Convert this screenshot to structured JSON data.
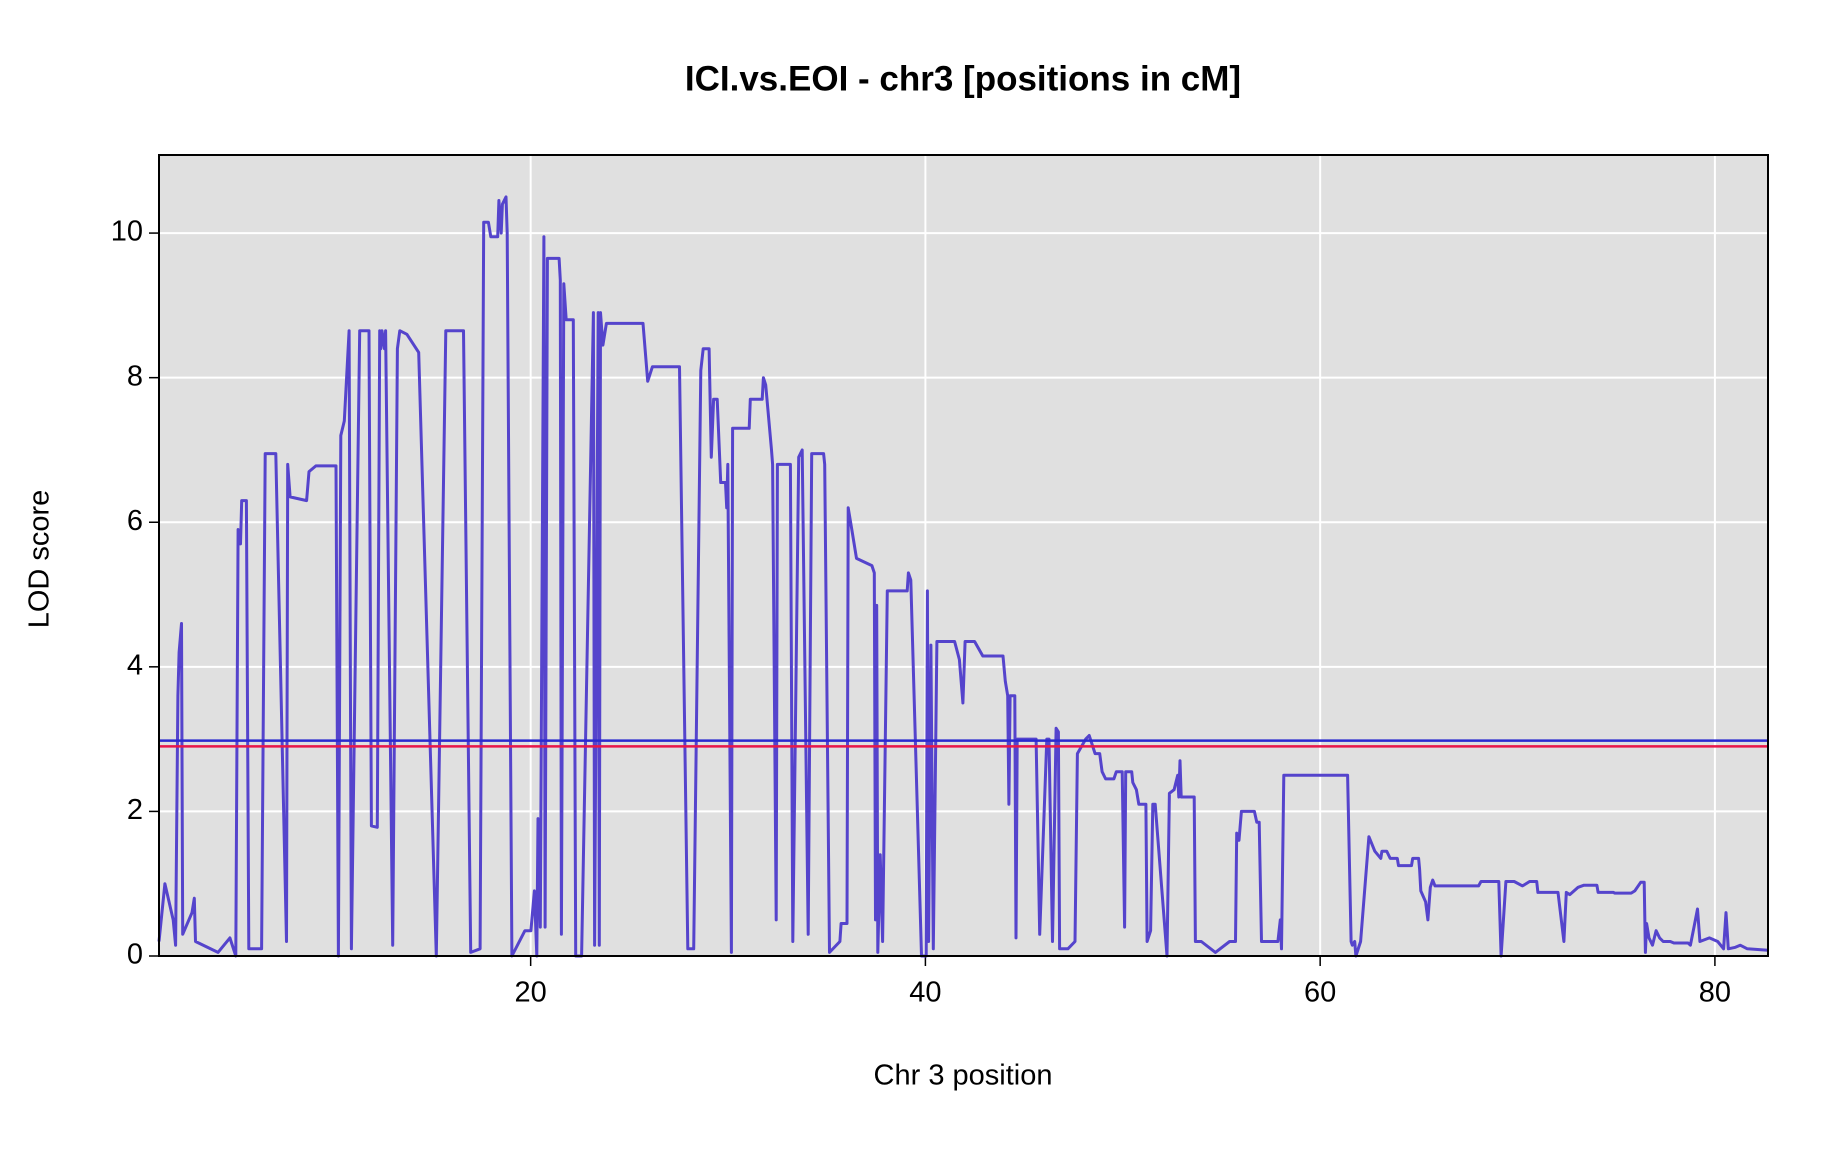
{
  "chart_data": {
    "type": "line",
    "title": "ICI.vs.EOI - chr3 [positions in cM]",
    "x_label": "Chr 3 position",
    "y_label": "LOD score",
    "color": "#5544cc",
    "xlim": [
      1.17,
      82.69
    ],
    "ylim": [
      0,
      11.08
    ],
    "xticks": [
      20,
      40,
      60,
      80
    ],
    "yticks": [
      0,
      2,
      4,
      6,
      8,
      10
    ],
    "grid": true,
    "hlines": [
      {
        "value": 2.98,
        "color": "#2a2ad0"
      },
      {
        "value": 2.9,
        "color": "#e8174a"
      }
    ],
    "x": [
      1.17,
      1.47,
      1.89,
      2.01,
      2.13,
      2.19,
      2.31,
      2.37,
      2.84,
      2.96,
      3.02,
      4.16,
      4.76,
      5.06,
      5.18,
      5.3,
      5.36,
      5.6,
      5.72,
      6.37,
      6.55,
      7.09,
      7.63,
      7.69,
      7.81,
      8.65,
      8.77,
      9.12,
      10.14,
      10.26,
      10.38,
      10.56,
      10.8,
      10.92,
      11.34,
      11.81,
      11.93,
      12.23,
      12.35,
      12.41,
      12.47,
      12.59,
      12.65,
      13.01,
      13.25,
      13.37,
      13.73,
      14.33,
      15.22,
      15.7,
      16.6,
      16.96,
      17.44,
      17.62,
      17.86,
      17.98,
      18.33,
      18.39,
      18.51,
      18.57,
      18.75,
      18.81,
      19.05,
      19.71,
      20.01,
      20.19,
      20.31,
      20.37,
      20.49,
      20.67,
      20.73,
      20.85,
      21.44,
      21.5,
      21.56,
      21.68,
      21.8,
      22.16,
      22.28,
      22.58,
      23.18,
      23.24,
      23.42,
      23.48,
      23.54,
      23.66,
      23.84,
      25.69,
      25.93,
      26.17,
      27.54,
      27.96,
      28.26,
      28.62,
      28.74,
      29.04,
      29.15,
      29.27,
      29.45,
      29.63,
      29.87,
      29.93,
      29.99,
      30.17,
      30.23,
      31.07,
      31.13,
      31.73,
      31.79,
      31.91,
      32.2,
      32.26,
      32.44,
      32.5,
      33.16,
      33.28,
      33.58,
      33.76,
      34.06,
      34.24,
      34.84,
      34.9,
      35.14,
      35.67,
      35.73,
      36.03,
      36.09,
      36.27,
      36.51,
      37.29,
      37.41,
      37.47,
      37.53,
      37.59,
      37.71,
      37.83,
      38.07,
      39.08,
      39.14,
      39.26,
      39.8,
      40.04,
      40.1,
      40.16,
      40.28,
      40.4,
      40.58,
      41.48,
      41.72,
      41.9,
      42.01,
      42.49,
      42.91,
      43.93,
      44.05,
      44.17,
      44.23,
      44.29,
      44.53,
      44.59,
      44.65,
      45.61,
      45.79,
      46.15,
      46.26,
      46.44,
      46.62,
      46.74,
      46.8,
      47.22,
      47.58,
      47.7,
      48.12,
      48.3,
      48.6,
      48.83,
      48.95,
      49.13,
      49.55,
      49.67,
      49.97,
      50.09,
      50.15,
      50.45,
      50.51,
      50.69,
      50.81,
      51.17,
      51.23,
      51.41,
      51.52,
      51.64,
      52.24,
      52.36,
      52.6,
      52.78,
      52.84,
      52.9,
      52.96,
      53.62,
      53.68,
      53.98,
      54.69,
      55.41,
      55.71,
      55.77,
      55.89,
      56.01,
      56.67,
      56.79,
      56.91,
      57.03,
      57.86,
      57.98,
      58.04,
      58.16,
      60.37,
      60.49,
      61.39,
      61.57,
      61.63,
      61.75,
      61.81,
      62.05,
      62.47,
      62.77,
      63.07,
      63.13,
      63.37,
      63.55,
      63.91,
      63.97,
      64.63,
      64.69,
      64.99,
      65.04,
      65.1,
      65.34,
      65.46,
      65.58,
      65.7,
      65.82,
      68.03,
      68.15,
      69.05,
      69.17,
      69.41,
      69.83,
      70.25,
      70.61,
      70.97,
      71.03,
      72.05,
      72.35,
      72.47,
      72.65,
      73.07,
      73.37,
      74.02,
      74.08,
      74.86,
      74.92,
      75.76,
      75.94,
      76.24,
      76.42,
      76.48,
      76.54,
      76.66,
      76.84,
      77.02,
      77.2,
      77.38,
      77.74,
      77.92,
      78.64,
      78.76,
      78.94,
      79.12,
      79.24,
      79.72,
      80.14,
      80.44,
      80.56,
      80.68,
      81.04,
      81.28,
      81.64,
      82.69
    ],
    "values": [
      0.2,
      1.0,
      0.5,
      0.15,
      3.6,
      4.2,
      4.6,
      0.3,
      0.6,
      0.8,
      0.2,
      0.05,
      0.25,
      0.0,
      5.9,
      5.7,
      6.3,
      6.3,
      0.1,
      0.1,
      6.95,
      6.95,
      0.2,
      6.8,
      6.35,
      6.3,
      6.7,
      6.78,
      6.78,
      0.0,
      7.2,
      7.4,
      8.65,
      0.1,
      8.65,
      8.65,
      1.8,
      1.78,
      8.65,
      8.4,
      8.65,
      8.4,
      8.65,
      0.15,
      8.4,
      8.65,
      8.6,
      8.35,
      0.0,
      8.65,
      8.65,
      0.05,
      0.1,
      10.15,
      10.15,
      9.95,
      9.95,
      10.45,
      10.0,
      10.4,
      10.5,
      10.0,
      0.0,
      0.35,
      0.35,
      0.9,
      0.0,
      1.9,
      0.4,
      9.95,
      0.4,
      9.65,
      9.65,
      9.35,
      0.3,
      9.3,
      8.8,
      8.8,
      0.0,
      0.0,
      8.9,
      0.15,
      8.9,
      0.15,
      8.9,
      8.45,
      8.75,
      8.75,
      7.95,
      8.15,
      8.15,
      0.1,
      0.1,
      8.1,
      8.4,
      8.4,
      6.9,
      7.7,
      7.7,
      6.55,
      6.55,
      6.2,
      6.8,
      0.05,
      7.3,
      7.3,
      7.7,
      7.7,
      8.0,
      7.9,
      7.0,
      6.8,
      0.5,
      6.8,
      6.8,
      0.2,
      6.9,
      7.0,
      0.3,
      6.95,
      6.95,
      6.8,
      0.05,
      0.2,
      0.45,
      0.45,
      6.2,
      5.9,
      5.5,
      5.4,
      5.3,
      0.5,
      4.85,
      0.05,
      1.4,
      0.2,
      5.05,
      5.05,
      5.3,
      5.2,
      0.0,
      0.0,
      5.05,
      0.2,
      4.3,
      0.1,
      4.35,
      4.35,
      4.1,
      3.5,
      4.35,
      4.35,
      4.15,
      4.15,
      3.8,
      3.6,
      2.1,
      3.6,
      3.6,
      0.25,
      3.0,
      3.0,
      0.3,
      3.0,
      3.0,
      0.2,
      3.15,
      3.1,
      0.1,
      0.1,
      0.2,
      2.8,
      3.0,
      3.05,
      2.8,
      2.8,
      2.55,
      2.45,
      2.45,
      2.55,
      2.55,
      0.4,
      2.55,
      2.55,
      2.4,
      2.3,
      2.1,
      2.1,
      0.2,
      0.35,
      2.1,
      2.1,
      0.0,
      2.25,
      2.3,
      2.5,
      2.2,
      2.7,
      2.2,
      2.2,
      0.2,
      0.2,
      0.05,
      0.2,
      0.2,
      1.7,
      1.6,
      2.0,
      2.0,
      1.85,
      1.85,
      0.2,
      0.2,
      0.5,
      0.1,
      2.5,
      2.5,
      2.5,
      2.5,
      0.2,
      0.15,
      0.2,
      0.0,
      0.2,
      1.65,
      1.45,
      1.35,
      1.45,
      1.45,
      1.35,
      1.35,
      1.25,
      1.25,
      1.35,
      1.35,
      1.2,
      0.9,
      0.75,
      0.5,
      0.95,
      1.05,
      0.97,
      0.97,
      1.03,
      1.03,
      0.0,
      1.03,
      1.03,
      0.97,
      1.03,
      1.03,
      0.88,
      0.88,
      0.2,
      0.88,
      0.85,
      0.95,
      0.98,
      0.98,
      0.88,
      0.88,
      0.87,
      0.87,
      0.9,
      1.02,
      1.02,
      0.05,
      0.45,
      0.25,
      0.15,
      0.35,
      0.25,
      0.2,
      0.2,
      0.18,
      0.18,
      0.15,
      0.4,
      0.65,
      0.2,
      0.25,
      0.2,
      0.1,
      0.6,
      0.1,
      0.12,
      0.15,
      0.1,
      0.08
    ]
  }
}
